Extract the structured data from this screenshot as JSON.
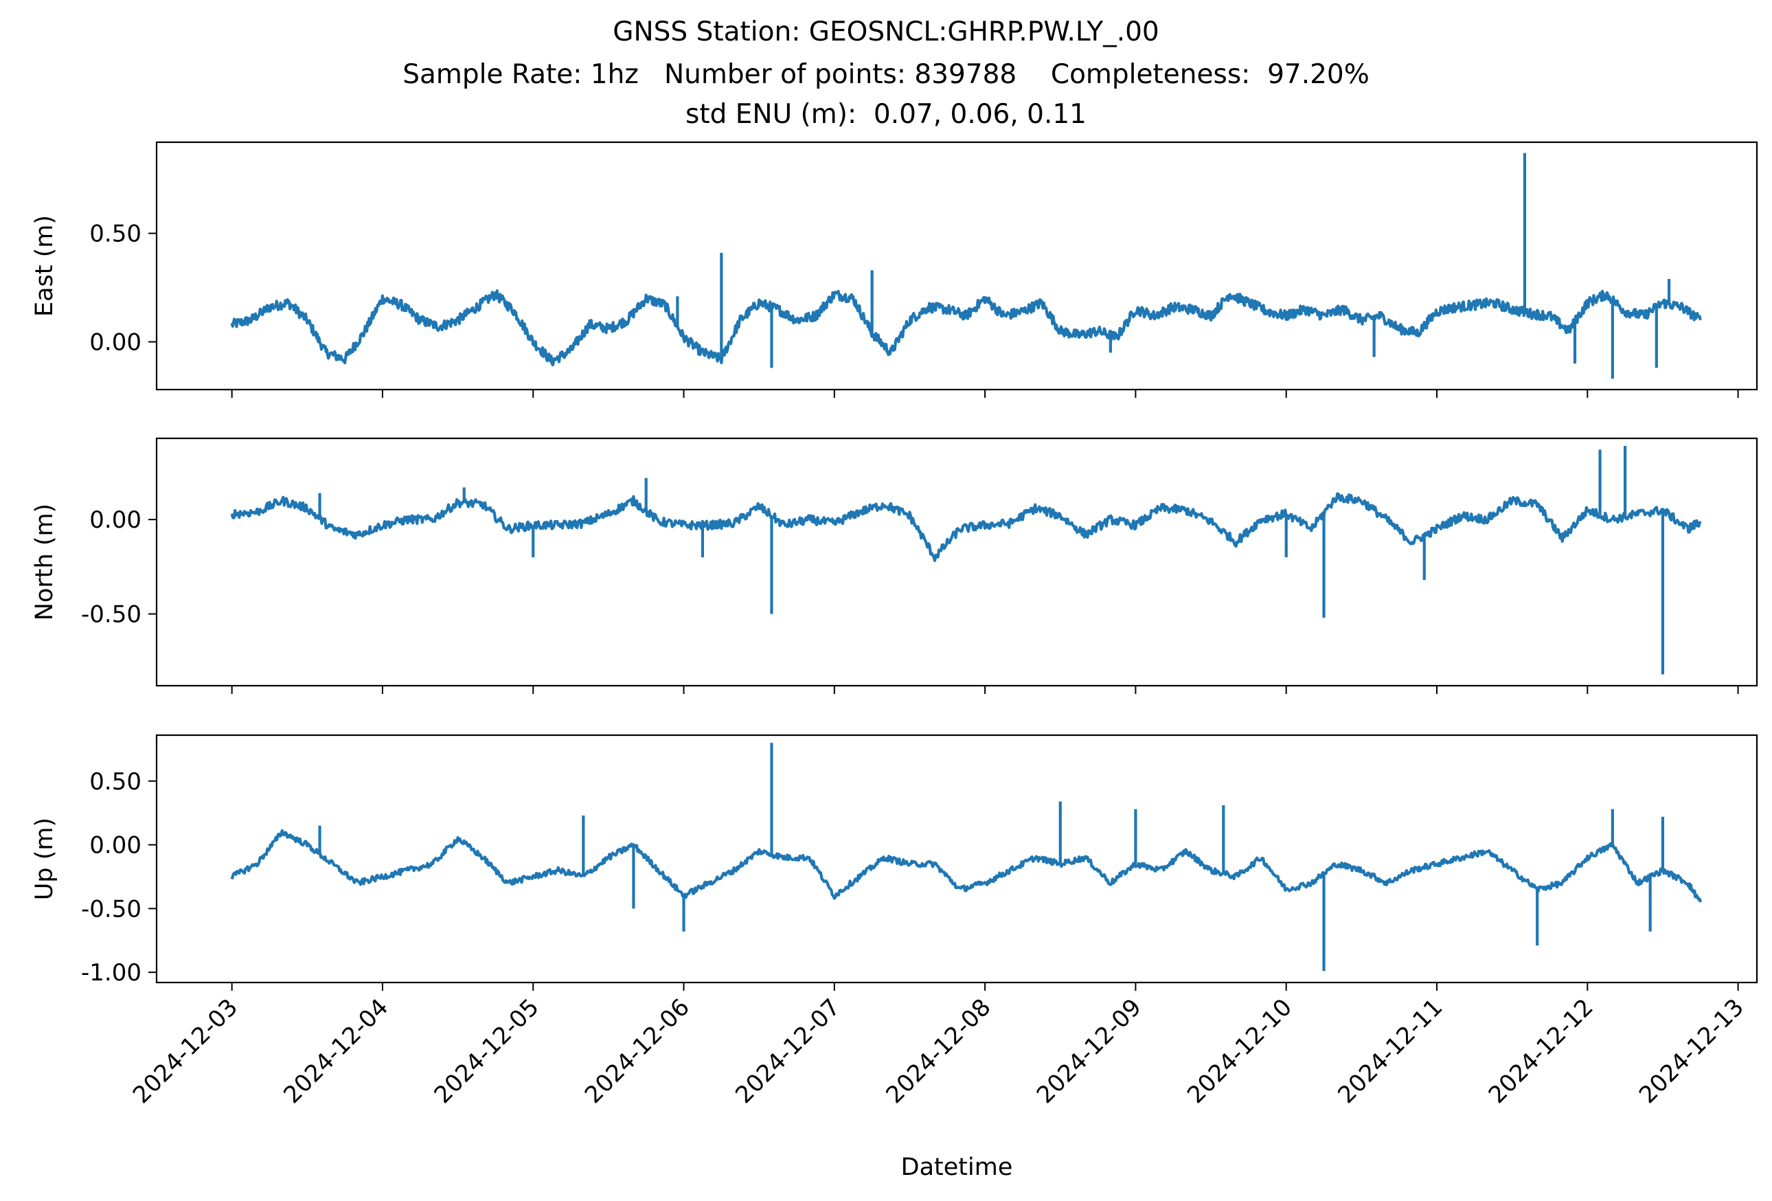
{
  "figure": {
    "title_lines": [
      "GNSS Station: GEOSNCL:GHRP.PW.LY_.00",
      "Sample Rate: 1hz   Number of points: 839788    Completeness:  97.20%",
      "std ENU (m):  0.07, 0.06, 0.11"
    ]
  },
  "chart_data": [
    {
      "type": "line",
      "ylabel": "East (m)",
      "xlabel": "",
      "color": "#1f77b4",
      "ylim": [
        -0.22,
        0.92
      ],
      "yticks": [
        0.0,
        0.5
      ],
      "ytick_labels": [
        "0.00",
        "0.50"
      ],
      "xlim": [
        "2024-12-02T12:00",
        "2024-12-13T03:00"
      ],
      "xticks": [
        "2024-12-03",
        "2024-12-04",
        "2024-12-05",
        "2024-12-06",
        "2024-12-07",
        "2024-12-08",
        "2024-12-09",
        "2024-12-10",
        "2024-12-11",
        "2024-12-12",
        "2024-12-13"
      ],
      "show_xtick_labels": false,
      "grid": false,
      "series": [
        {
          "x": [
            "2024-12-03T00:00",
            "2024-12-03T03:00",
            "2024-12-03T06:00",
            "2024-12-03T09:00",
            "2024-12-03T12:00",
            "2024-12-03T15:00",
            "2024-12-03T18:00",
            "2024-12-03T21:00",
            "2024-12-04T00:00",
            "2024-12-04T03:00",
            "2024-12-04T06:00",
            "2024-12-04T09:00",
            "2024-12-04T12:00",
            "2024-12-04T15:00",
            "2024-12-04T18:00",
            "2024-12-04T21:00",
            "2024-12-05T00:00",
            "2024-12-05T03:00",
            "2024-12-05T06:00",
            "2024-12-05T09:00",
            "2024-12-05T12:00",
            "2024-12-05T15:00",
            "2024-12-05T18:00",
            "2024-12-05T21:00",
            "2024-12-06T00:00",
            "2024-12-06T03:00",
            "2024-12-06T06:00",
            "2024-12-06T09:00",
            "2024-12-06T12:00",
            "2024-12-06T15:00",
            "2024-12-06T18:00",
            "2024-12-06T21:00",
            "2024-12-07T00:00",
            "2024-12-07T03:00",
            "2024-12-07T06:00",
            "2024-12-07T09:00",
            "2024-12-07T12:00",
            "2024-12-07T15:00",
            "2024-12-07T18:00",
            "2024-12-07T21:00",
            "2024-12-08T00:00",
            "2024-12-08T03:00",
            "2024-12-08T06:00",
            "2024-12-08T09:00",
            "2024-12-08T12:00",
            "2024-12-08T15:00",
            "2024-12-08T18:00",
            "2024-12-08T21:00",
            "2024-12-09T00:00",
            "2024-12-09T03:00",
            "2024-12-09T06:00",
            "2024-12-09T09:00",
            "2024-12-09T12:00",
            "2024-12-09T15:00",
            "2024-12-09T18:00",
            "2024-12-09T21:00",
            "2024-12-10T00:00",
            "2024-12-10T03:00",
            "2024-12-10T06:00",
            "2024-12-10T09:00",
            "2024-12-10T12:00",
            "2024-12-10T15:00",
            "2024-12-10T18:00",
            "2024-12-10T21:00",
            "2024-12-11T00:00",
            "2024-12-11T03:00",
            "2024-12-11T06:00",
            "2024-12-11T09:00",
            "2024-12-11T12:00",
            "2024-12-11T15:00",
            "2024-12-11T18:00",
            "2024-12-11T21:00",
            "2024-12-12T00:00",
            "2024-12-12T03:00",
            "2024-12-12T06:00",
            "2024-12-12T09:00",
            "2024-12-12T12:00",
            "2024-12-12T15:00",
            "2024-12-12T18:00"
          ],
          "y": [
            0.08,
            0.1,
            0.16,
            0.18,
            0.1,
            -0.05,
            -0.08,
            0.04,
            0.2,
            0.17,
            0.1,
            0.07,
            0.1,
            0.16,
            0.22,
            0.14,
            0.0,
            -0.09,
            -0.04,
            0.08,
            0.06,
            0.1,
            0.2,
            0.17,
            0.02,
            -0.05,
            -0.08,
            0.1,
            0.18,
            0.15,
            0.1,
            0.12,
            0.22,
            0.2,
            0.04,
            -0.05,
            0.1,
            0.16,
            0.15,
            0.12,
            0.2,
            0.12,
            0.14,
            0.18,
            0.05,
            0.03,
            0.05,
            0.02,
            0.15,
            0.12,
            0.16,
            0.15,
            0.12,
            0.22,
            0.18,
            0.14,
            0.12,
            0.15,
            0.12,
            0.15,
            0.1,
            0.12,
            0.06,
            0.04,
            0.14,
            0.16,
            0.17,
            0.18,
            0.15,
            0.13,
            0.12,
            0.05,
            0.18,
            0.22,
            0.14,
            0.12,
            0.18,
            0.16,
            0.1
          ],
          "spikes": [
            {
              "x": "2024-12-06T06:00",
              "y": 0.41
            },
            {
              "x": "2024-12-06T14:00",
              "y": -0.12
            },
            {
              "x": "2024-12-07T06:00",
              "y": 0.33
            },
            {
              "x": "2024-12-11T14:00",
              "y": 0.87
            },
            {
              "x": "2024-12-12T04:00",
              "y": -0.17
            },
            {
              "x": "2024-12-12T11:00",
              "y": -0.12
            },
            {
              "x": "2024-12-12T13:00",
              "y": 0.29
            },
            {
              "x": "2024-12-11T22:00",
              "y": -0.1
            },
            {
              "x": "2024-12-08T20:00",
              "y": -0.05
            },
            {
              "x": "2024-12-10T14:00",
              "y": -0.07
            },
            {
              "x": "2024-12-05T23:00",
              "y": 0.21
            }
          ]
        }
      ]
    },
    {
      "type": "line",
      "ylabel": "North (m)",
      "xlabel": "",
      "color": "#1f77b4",
      "ylim": [
        -0.88,
        0.43
      ],
      "yticks": [
        0.0,
        -0.5
      ],
      "ytick_labels": [
        "0.00",
        "-0.50"
      ],
      "xlim": [
        "2024-12-02T12:00",
        "2024-12-13T03:00"
      ],
      "xticks": [
        "2024-12-03",
        "2024-12-04",
        "2024-12-05",
        "2024-12-06",
        "2024-12-07",
        "2024-12-08",
        "2024-12-09",
        "2024-12-10",
        "2024-12-11",
        "2024-12-12",
        "2024-12-13"
      ],
      "show_xtick_labels": false,
      "grid": false,
      "series": [
        {
          "x": [
            "2024-12-03T00:00",
            "2024-12-03T04:00",
            "2024-12-03T08:00",
            "2024-12-03T12:00",
            "2024-12-03T16:00",
            "2024-12-03T20:00",
            "2024-12-04T00:00",
            "2024-12-04T04:00",
            "2024-12-04T08:00",
            "2024-12-04T12:00",
            "2024-12-04T16:00",
            "2024-12-04T20:00",
            "2024-12-05T00:00",
            "2024-12-05T04:00",
            "2024-12-05T08:00",
            "2024-12-05T12:00",
            "2024-12-05T16:00",
            "2024-12-05T20:00",
            "2024-12-06T00:00",
            "2024-12-06T04:00",
            "2024-12-06T08:00",
            "2024-12-06T12:00",
            "2024-12-06T16:00",
            "2024-12-06T20:00",
            "2024-12-07T00:00",
            "2024-12-07T04:00",
            "2024-12-07T08:00",
            "2024-12-07T12:00",
            "2024-12-07T16:00",
            "2024-12-07T20:00",
            "2024-12-08T00:00",
            "2024-12-08T04:00",
            "2024-12-08T08:00",
            "2024-12-08T12:00",
            "2024-12-08T16:00",
            "2024-12-08T20:00",
            "2024-12-09T00:00",
            "2024-12-09T04:00",
            "2024-12-09T08:00",
            "2024-12-09T12:00",
            "2024-12-09T16:00",
            "2024-12-09T20:00",
            "2024-12-10T00:00",
            "2024-12-10T04:00",
            "2024-12-10T08:00",
            "2024-12-10T12:00",
            "2024-12-10T16:00",
            "2024-12-10T20:00",
            "2024-12-11T00:00",
            "2024-12-11T04:00",
            "2024-12-11T08:00",
            "2024-12-11T12:00",
            "2024-12-11T16:00",
            "2024-12-11T20:00",
            "2024-12-12T00:00",
            "2024-12-12T04:00",
            "2024-12-12T08:00",
            "2024-12-12T12:00",
            "2024-12-12T16:00",
            "2024-12-12T18:00"
          ],
          "y": [
            0.03,
            0.04,
            0.1,
            0.06,
            -0.05,
            -0.08,
            -0.03,
            0.0,
            0.0,
            0.09,
            0.08,
            -0.05,
            -0.03,
            -0.03,
            -0.02,
            0.03,
            0.1,
            -0.01,
            -0.03,
            -0.03,
            -0.02,
            0.07,
            -0.03,
            0.0,
            -0.02,
            0.04,
            0.08,
            0.02,
            -0.2,
            -0.05,
            -0.03,
            -0.02,
            0.06,
            0.02,
            -0.08,
            0.0,
            -0.03,
            0.06,
            0.05,
            -0.01,
            -0.12,
            0.0,
            0.03,
            -0.05,
            0.12,
            0.1,
            0.0,
            -0.12,
            -0.05,
            0.02,
            0.0,
            0.1,
            0.08,
            -0.1,
            0.05,
            0.0,
            0.03,
            0.05,
            -0.05,
            -0.01
          ],
          "spikes": [
            {
              "x": "2024-12-06T14:00",
              "y": -0.5
            },
            {
              "x": "2024-12-10T06:00",
              "y": -0.52
            },
            {
              "x": "2024-12-12T12:00",
              "y": -0.82
            },
            {
              "x": "2024-12-12T02:00",
              "y": 0.37
            },
            {
              "x": "2024-12-12T06:00",
              "y": 0.39
            },
            {
              "x": "2024-12-05T18:00",
              "y": 0.22
            },
            {
              "x": "2024-12-04T13:00",
              "y": 0.17
            },
            {
              "x": "2024-12-06T03:00",
              "y": -0.2
            },
            {
              "x": "2024-12-05T00:00",
              "y": -0.2
            },
            {
              "x": "2024-12-10T22:00",
              "y": -0.32
            },
            {
              "x": "2024-12-03T14:00",
              "y": 0.14
            },
            {
              "x": "2024-12-10T00:00",
              "y": -0.2
            }
          ]
        }
      ]
    },
    {
      "type": "line",
      "ylabel": "Up (m)",
      "xlabel": "Datetime",
      "color": "#1f77b4",
      "ylim": [
        -1.08,
        0.86
      ],
      "yticks": [
        0.5,
        0.0,
        -0.5,
        -1.0
      ],
      "ytick_labels": [
        "0.50",
        "0.00",
        "-0.50",
        "-1.00"
      ],
      "xlim": [
        "2024-12-02T12:00",
        "2024-12-13T03:00"
      ],
      "xticks": [
        "2024-12-03",
        "2024-12-04",
        "2024-12-05",
        "2024-12-06",
        "2024-12-07",
        "2024-12-08",
        "2024-12-09",
        "2024-12-10",
        "2024-12-11",
        "2024-12-12",
        "2024-12-13"
      ],
      "show_xtick_labels": true,
      "grid": false,
      "series": [
        {
          "x": [
            "2024-12-03T00:00",
            "2024-12-03T04:00",
            "2024-12-03T08:00",
            "2024-12-03T12:00",
            "2024-12-03T16:00",
            "2024-12-03T20:00",
            "2024-12-04T00:00",
            "2024-12-04T04:00",
            "2024-12-04T08:00",
            "2024-12-04T12:00",
            "2024-12-04T16:00",
            "2024-12-04T20:00",
            "2024-12-05T00:00",
            "2024-12-05T04:00",
            "2024-12-05T08:00",
            "2024-12-05T12:00",
            "2024-12-05T16:00",
            "2024-12-05T20:00",
            "2024-12-06T00:00",
            "2024-12-06T04:00",
            "2024-12-06T08:00",
            "2024-12-06T12:00",
            "2024-12-06T16:00",
            "2024-12-06T20:00",
            "2024-12-07T00:00",
            "2024-12-07T04:00",
            "2024-12-07T08:00",
            "2024-12-07T12:00",
            "2024-12-07T16:00",
            "2024-12-07T20:00",
            "2024-12-08T00:00",
            "2024-12-08T04:00",
            "2024-12-08T08:00",
            "2024-12-08T12:00",
            "2024-12-08T16:00",
            "2024-12-08T20:00",
            "2024-12-09T00:00",
            "2024-12-09T04:00",
            "2024-12-09T08:00",
            "2024-12-09T12:00",
            "2024-12-09T16:00",
            "2024-12-09T20:00",
            "2024-12-10T00:00",
            "2024-12-10T04:00",
            "2024-12-10T08:00",
            "2024-12-10T12:00",
            "2024-12-10T16:00",
            "2024-12-10T20:00",
            "2024-12-11T00:00",
            "2024-12-11T04:00",
            "2024-12-11T08:00",
            "2024-12-11T12:00",
            "2024-12-11T16:00",
            "2024-12-11T20:00",
            "2024-12-12T00:00",
            "2024-12-12T04:00",
            "2024-12-12T08:00",
            "2024-12-12T12:00",
            "2024-12-12T16:00",
            "2024-12-12T18:00"
          ],
          "y": [
            -0.25,
            -0.15,
            0.1,
            0.0,
            -0.15,
            -0.3,
            -0.25,
            -0.2,
            -0.15,
            0.05,
            -0.1,
            -0.3,
            -0.25,
            -0.2,
            -0.25,
            -0.1,
            0.0,
            -0.2,
            -0.4,
            -0.3,
            -0.2,
            -0.05,
            -0.1,
            -0.1,
            -0.4,
            -0.25,
            -0.1,
            -0.15,
            -0.15,
            -0.35,
            -0.3,
            -0.2,
            -0.1,
            -0.15,
            -0.1,
            -0.3,
            -0.15,
            -0.2,
            -0.05,
            -0.2,
            -0.25,
            -0.1,
            -0.35,
            -0.3,
            -0.15,
            -0.2,
            -0.3,
            -0.2,
            -0.15,
            -0.1,
            -0.05,
            -0.2,
            -0.35,
            -0.3,
            -0.1,
            0.0,
            -0.3,
            -0.2,
            -0.3,
            -0.45
          ],
          "spikes": [
            {
              "x": "2024-12-06T14:00",
              "y": 0.8
            },
            {
              "x": "2024-12-10T06:00",
              "y": -0.99
            },
            {
              "x": "2024-12-06T00:00",
              "y": -0.68
            },
            {
              "x": "2024-12-11T16:00",
              "y": -0.79
            },
            {
              "x": "2024-12-08T12:00",
              "y": 0.34
            },
            {
              "x": "2024-12-09T00:00",
              "y": 0.28
            },
            {
              "x": "2024-12-09T14:00",
              "y": 0.31
            },
            {
              "x": "2024-12-05T08:00",
              "y": 0.23
            },
            {
              "x": "2024-12-03T14:00",
              "y": 0.15
            },
            {
              "x": "2024-12-12T04:00",
              "y": 0.28
            },
            {
              "x": "2024-12-12T12:00",
              "y": 0.22
            },
            {
              "x": "2024-12-12T10:00",
              "y": -0.68
            },
            {
              "x": "2024-12-05T16:00",
              "y": -0.5
            }
          ]
        }
      ]
    }
  ]
}
